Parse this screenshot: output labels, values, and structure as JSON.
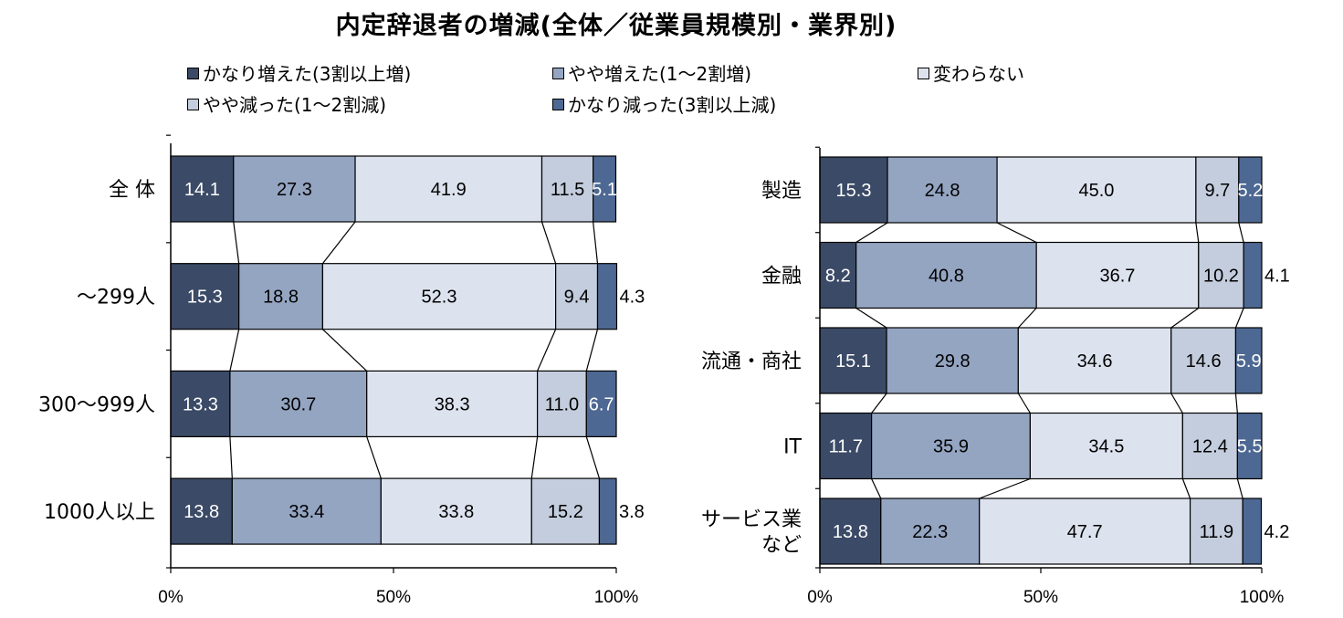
{
  "title": "内定辞退者の増減(全体／従業員規模別・業界別)",
  "legend": [
    {
      "label": "かなり増えた(3割以上増)",
      "color": "#3b4a66"
    },
    {
      "label": "やや増えた(1～2割増)",
      "color": "#94a5c2"
    },
    {
      "label": "変わらない",
      "color": "#dde3ee"
    },
    {
      "label": "やや減った(1～2割減)",
      "color": "#c3cddd"
    },
    {
      "label": "かなり減った(3割以上減)",
      "color": "#4d6893"
    }
  ],
  "chart_data": [
    {
      "type": "bar",
      "orientation": "horizontal-stacked-100",
      "categories": [
        "全 体",
        "～299人",
        "300～999人",
        "1000人以上"
      ],
      "series": [
        {
          "name": "かなり増えた(3割以上増)",
          "values": [
            14.1,
            15.3,
            13.3,
            13.8
          ]
        },
        {
          "name": "やや増えた(1～2割増)",
          "values": [
            27.3,
            18.8,
            30.7,
            33.4
          ]
        },
        {
          "name": "変わらない",
          "values": [
            41.9,
            52.3,
            38.3,
            33.8
          ]
        },
        {
          "name": "やや減った(1～2割減)",
          "values": [
            11.5,
            9.4,
            11.0,
            15.2
          ]
        },
        {
          "name": "かなり減った(3割以上減)",
          "values": [
            5.1,
            4.3,
            6.7,
            3.8
          ]
        }
      ],
      "xticks": [
        "0%",
        "50%",
        "100%"
      ],
      "xlim": [
        0,
        100
      ]
    },
    {
      "type": "bar",
      "orientation": "horizontal-stacked-100",
      "categories": [
        "製造",
        "金融",
        "流通・商社",
        "IT",
        "サービス業\nなど"
      ],
      "series": [
        {
          "name": "かなり増えた(3割以上増)",
          "values": [
            15.3,
            8.2,
            15.1,
            11.7,
            13.8
          ]
        },
        {
          "name": "やや増えた(1～2割増)",
          "values": [
            24.8,
            40.8,
            29.8,
            35.9,
            22.3
          ]
        },
        {
          "name": "変わらない",
          "values": [
            45.0,
            36.7,
            34.6,
            34.5,
            47.7
          ]
        },
        {
          "name": "やや減った(1～2割減)",
          "values": [
            9.7,
            10.2,
            14.6,
            12.4,
            11.9
          ]
        },
        {
          "name": "かなり減った(3割以上減)",
          "values": [
            5.2,
            4.1,
            5.9,
            5.5,
            4.2
          ]
        }
      ],
      "xticks": [
        "0%",
        "50%",
        "100%"
      ],
      "xlim": [
        0,
        100
      ]
    }
  ]
}
